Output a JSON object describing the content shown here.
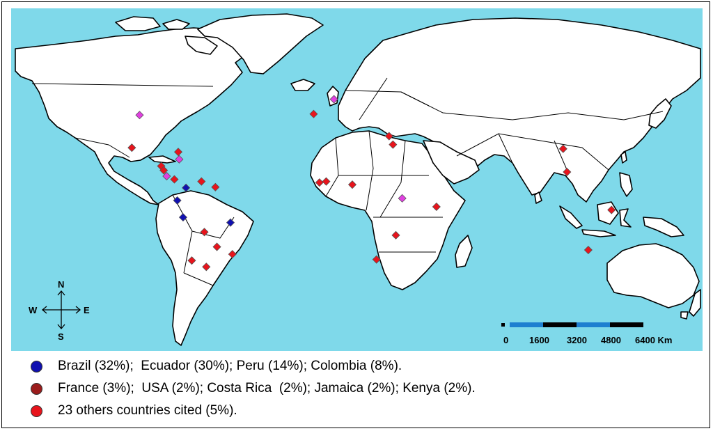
{
  "colors": {
    "ocean": "#7fd9ea",
    "land": "#ffffff",
    "border": "#000000",
    "marker_major": "#1010b0",
    "marker_mid": "#e040e0",
    "marker_minor": "#e8141c",
    "scale_blue": "#1e7fd0",
    "scale_black": "#000000"
  },
  "compass": {
    "north": "N",
    "south": "S",
    "east": "E",
    "west": "W"
  },
  "scale_bar": {
    "labels": [
      "0",
      "1600",
      "3200",
      "4800",
      "6400 Km"
    ]
  },
  "legend": [
    {
      "color": "#1010b0",
      "text": "Brazil (32%);  Ecuador (30%); Peru (14%); Colombia (8%)."
    },
    {
      "color": "#9b1c1c",
      "text": "France (3%);  USA (2%); Costa Rica  (2%); Jamaica (2%); Kenya (2%)."
    },
    {
      "color": "#e8141c",
      "text": "23 others countries cited (5%)."
    }
  ],
  "markers": [
    {
      "name": "brazil",
      "lat": -12,
      "lon": -51,
      "group": "major"
    },
    {
      "name": "ecuador",
      "lat": -1.5,
      "lon": -78.5,
      "group": "major"
    },
    {
      "name": "peru",
      "lat": -9.5,
      "lon": -75.5,
      "group": "major"
    },
    {
      "name": "colombia",
      "lat": 4.5,
      "lon": -74,
      "group": "major"
    },
    {
      "name": "france",
      "lat": 46.5,
      "lon": 2.5,
      "group": "mid"
    },
    {
      "name": "usa",
      "lat": 39,
      "lon": -98,
      "group": "mid"
    },
    {
      "name": "costa-rica",
      "lat": 10,
      "lon": -84,
      "group": "mid"
    },
    {
      "name": "jamaica",
      "lat": 18,
      "lon": -77.5,
      "group": "mid"
    },
    {
      "name": "kenya",
      "lat": -0.5,
      "lon": 37.8,
      "group": "mid"
    },
    {
      "name": "mexico",
      "lat": 23.5,
      "lon": -102,
      "group": "minor"
    },
    {
      "name": "cuba",
      "lat": 21.5,
      "lon": -78,
      "group": "minor"
    },
    {
      "name": "honduras",
      "lat": 14.8,
      "lon": -86.8,
      "group": "minor"
    },
    {
      "name": "nicaragua",
      "lat": 12.8,
      "lon": -85.5,
      "group": "minor"
    },
    {
      "name": "panama",
      "lat": 8.5,
      "lon": -80,
      "group": "minor"
    },
    {
      "name": "venezuela",
      "lat": 7.5,
      "lon": -66,
      "group": "minor"
    },
    {
      "name": "guyana",
      "lat": 4.8,
      "lon": -58.8,
      "group": "minor"
    },
    {
      "name": "bolivia",
      "lat": -16.5,
      "lon": -64.5,
      "group": "minor"
    },
    {
      "name": "paraguay",
      "lat": -23.5,
      "lon": -58.0,
      "group": "minor"
    },
    {
      "name": "brazil-south",
      "lat": -27,
      "lon": -50,
      "group": "minor"
    },
    {
      "name": "chile",
      "lat": -30,
      "lon": -71,
      "group": "minor"
    },
    {
      "name": "argentina",
      "lat": -33,
      "lon": -63.5,
      "group": "minor"
    },
    {
      "name": "portugal",
      "lat": 39.5,
      "lon": -8,
      "group": "minor"
    },
    {
      "name": "egypt",
      "lat": 29,
      "lon": 31,
      "group": "minor"
    },
    {
      "name": "israel",
      "lat": 25,
      "lon": 33,
      "group": "minor"
    },
    {
      "name": "ghana",
      "lat": 7.5,
      "lon": -1.5,
      "group": "minor"
    },
    {
      "name": "ivory-coast",
      "lat": 7,
      "lon": -5,
      "group": "minor"
    },
    {
      "name": "cameroon",
      "lat": 6,
      "lon": 12,
      "group": "minor"
    },
    {
      "name": "mozambique",
      "lat": -18,
      "lon": 34.5,
      "group": "minor"
    },
    {
      "name": "south-africa",
      "lat": -29.5,
      "lon": 24.5,
      "group": "minor"
    },
    {
      "name": "reunion",
      "lat": -4.5,
      "lon": 55.5,
      "group": "minor"
    },
    {
      "name": "taiwan",
      "lat": 23,
      "lon": 121,
      "group": "minor"
    },
    {
      "name": "philippines",
      "lat": 12,
      "lon": 123,
      "group": "minor"
    },
    {
      "name": "papua",
      "lat": -6,
      "lon": 146,
      "group": "minor"
    },
    {
      "name": "australia",
      "lat": -25,
      "lon": 134,
      "group": "minor"
    }
  ]
}
